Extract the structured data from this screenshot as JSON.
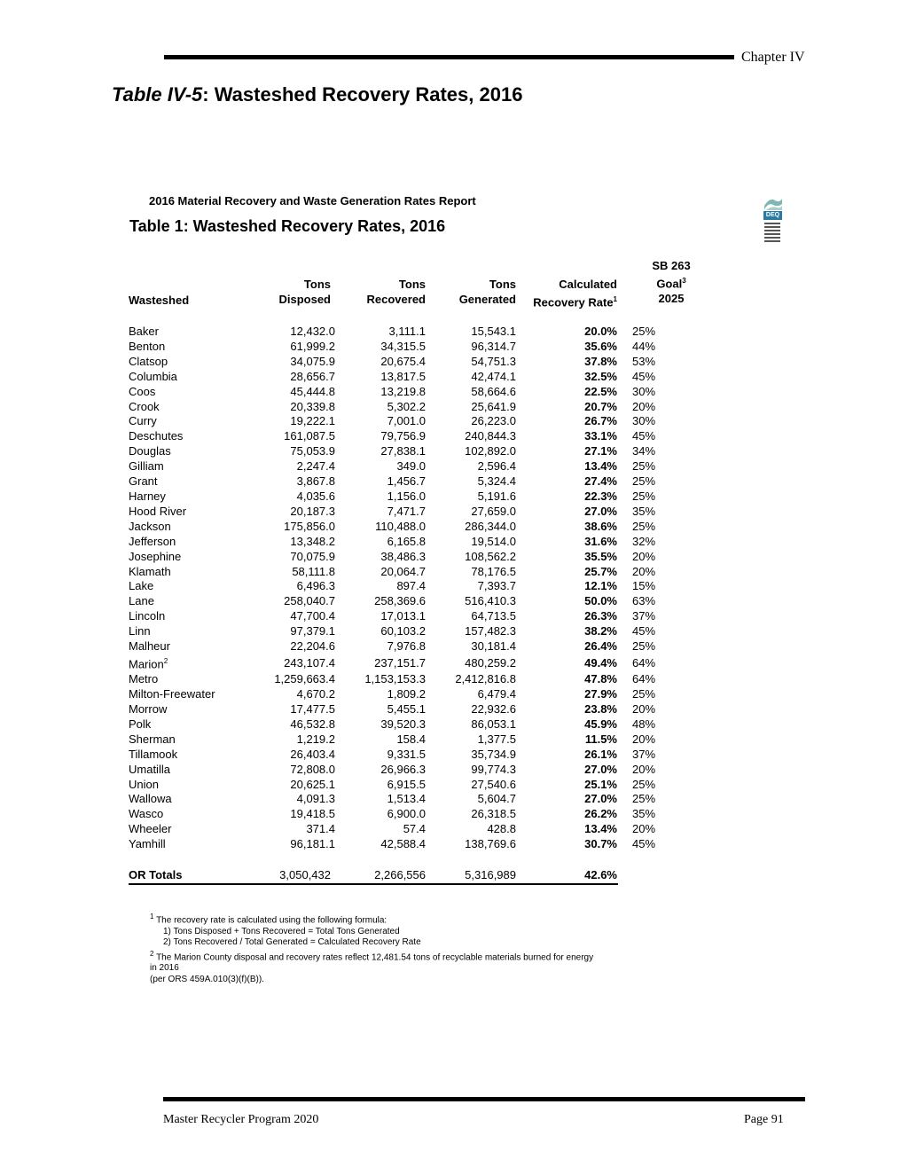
{
  "header": {
    "chapter": "Chapter IV",
    "title_italic": "Table IV-5",
    "title_rest": ": Wasteshed Recovery Rates, 2016"
  },
  "report": {
    "header": "2016 Material Recovery and Waste Generation Rates Report",
    "table_title": "Table 1: Wasteshed Recovery Rates, 2016",
    "logo_text": "DEQ"
  },
  "columns": {
    "wasteshed": "Wasteshed",
    "disposed_1": "Tons",
    "disposed_2": "Disposed",
    "recovered_1": "Tons",
    "recovered_2": "Recovered",
    "generated_1": "Tons",
    "generated_2": "Generated",
    "rate_1": "Calculated",
    "rate_2": "Recovery Rate",
    "rate_sup": "1",
    "goal_1": "SB 263",
    "goal_2": "Goal",
    "goal_sup": "3",
    "goal_3": "2025"
  },
  "rows": [
    {
      "name": "Baker",
      "disposed": "12,432.0",
      "recovered": "3,111.1",
      "generated": "15,543.1",
      "rate": "20.0%",
      "goal": "25%"
    },
    {
      "name": "Benton",
      "disposed": "61,999.2",
      "recovered": "34,315.5",
      "generated": "96,314.7",
      "rate": "35.6%",
      "goal": "44%"
    },
    {
      "name": "Clatsop",
      "disposed": "34,075.9",
      "recovered": "20,675.4",
      "generated": "54,751.3",
      "rate": "37.8%",
      "goal": "53%"
    },
    {
      "name": "Columbia",
      "disposed": "28,656.7",
      "recovered": "13,817.5",
      "generated": "42,474.1",
      "rate": "32.5%",
      "goal": "45%"
    },
    {
      "name": "Coos",
      "disposed": "45,444.8",
      "recovered": "13,219.8",
      "generated": "58,664.6",
      "rate": "22.5%",
      "goal": "30%"
    },
    {
      "name": "Crook",
      "disposed": "20,339.8",
      "recovered": "5,302.2",
      "generated": "25,641.9",
      "rate": "20.7%",
      "goal": "20%"
    },
    {
      "name": "Curry",
      "disposed": "19,222.1",
      "recovered": "7,001.0",
      "generated": "26,223.0",
      "rate": "26.7%",
      "goal": "30%"
    },
    {
      "name": "Deschutes",
      "disposed": "161,087.5",
      "recovered": "79,756.9",
      "generated": "240,844.3",
      "rate": "33.1%",
      "goal": "45%"
    },
    {
      "name": "Douglas",
      "disposed": "75,053.9",
      "recovered": "27,838.1",
      "generated": "102,892.0",
      "rate": "27.1%",
      "goal": "34%"
    },
    {
      "name": "Gilliam",
      "disposed": "2,247.4",
      "recovered": "349.0",
      "generated": "2,596.4",
      "rate": "13.4%",
      "goal": "25%"
    },
    {
      "name": "Grant",
      "disposed": "3,867.8",
      "recovered": "1,456.7",
      "generated": "5,324.4",
      "rate": "27.4%",
      "goal": "25%"
    },
    {
      "name": "Harney",
      "disposed": "4,035.6",
      "recovered": "1,156.0",
      "generated": "5,191.6",
      "rate": "22.3%",
      "goal": "25%"
    },
    {
      "name": "Hood River",
      "disposed": "20,187.3",
      "recovered": "7,471.7",
      "generated": "27,659.0",
      "rate": "27.0%",
      "goal": "35%"
    },
    {
      "name": "Jackson",
      "disposed": "175,856.0",
      "recovered": "110,488.0",
      "generated": "286,344.0",
      "rate": "38.6%",
      "goal": "25%"
    },
    {
      "name": "Jefferson",
      "disposed": "13,348.2",
      "recovered": "6,165.8",
      "generated": "19,514.0",
      "rate": "31.6%",
      "goal": "32%"
    },
    {
      "name": "Josephine",
      "disposed": "70,075.9",
      "recovered": "38,486.3",
      "generated": "108,562.2",
      "rate": "35.5%",
      "goal": "20%"
    },
    {
      "name": "Klamath",
      "disposed": "58,111.8",
      "recovered": "20,064.7",
      "generated": "78,176.5",
      "rate": "25.7%",
      "goal": "20%"
    },
    {
      "name": "Lake",
      "disposed": "6,496.3",
      "recovered": "897.4",
      "generated": "7,393.7",
      "rate": "12.1%",
      "goal": "15%"
    },
    {
      "name": "Lane",
      "disposed": "258,040.7",
      "recovered": "258,369.6",
      "generated": "516,410.3",
      "rate": "50.0%",
      "goal": "63%"
    },
    {
      "name": "Lincoln",
      "disposed": "47,700.4",
      "recovered": "17,013.1",
      "generated": "64,713.5",
      "rate": "26.3%",
      "goal": "37%"
    },
    {
      "name": "Linn",
      "disposed": "97,379.1",
      "recovered": "60,103.2",
      "generated": "157,482.3",
      "rate": "38.2%",
      "goal": "45%"
    },
    {
      "name": "Malheur",
      "disposed": "22,204.6",
      "recovered": "7,976.8",
      "generated": "30,181.4",
      "rate": "26.4%",
      "goal": "25%"
    },
    {
      "name": "Marion",
      "sup": "2",
      "disposed": "243,107.4",
      "recovered": "237,151.7",
      "generated": "480,259.2",
      "rate": "49.4%",
      "goal": "64%"
    },
    {
      "name": "Metro",
      "disposed": "1,259,663.4",
      "recovered": "1,153,153.3",
      "generated": "2,412,816.8",
      "rate": "47.8%",
      "goal": "64%"
    },
    {
      "name": "Milton-Freewater",
      "disposed": "4,670.2",
      "recovered": "1,809.2",
      "generated": "6,479.4",
      "rate": "27.9%",
      "goal": "25%"
    },
    {
      "name": "Morrow",
      "disposed": "17,477.5",
      "recovered": "5,455.1",
      "generated": "22,932.6",
      "rate": "23.8%",
      "goal": "20%"
    },
    {
      "name": "Polk",
      "disposed": "46,532.8",
      "recovered": "39,520.3",
      "generated": "86,053.1",
      "rate": "45.9%",
      "goal": "48%"
    },
    {
      "name": "Sherman",
      "disposed": "1,219.2",
      "recovered": "158.4",
      "generated": "1,377.5",
      "rate": "11.5%",
      "goal": "20%"
    },
    {
      "name": "Tillamook",
      "disposed": "26,403.4",
      "recovered": "9,331.5",
      "generated": "35,734.9",
      "rate": "26.1%",
      "goal": "37%"
    },
    {
      "name": "Umatilla",
      "disposed": "72,808.0",
      "recovered": "26,966.3",
      "generated": "99,774.3",
      "rate": "27.0%",
      "goal": "20%"
    },
    {
      "name": "Union",
      "disposed": "20,625.1",
      "recovered": "6,915.5",
      "generated": "27,540.6",
      "rate": "25.1%",
      "goal": "25%"
    },
    {
      "name": "Wallowa",
      "disposed": "4,091.3",
      "recovered": "1,513.4",
      "generated": "5,604.7",
      "rate": "27.0%",
      "goal": "25%"
    },
    {
      "name": "Wasco",
      "disposed": "19,418.5",
      "recovered": "6,900.0",
      "generated": "26,318.5",
      "rate": "26.2%",
      "goal": "35%"
    },
    {
      "name": "Wheeler",
      "disposed": "371.4",
      "recovered": "57.4",
      "generated": "428.8",
      "rate": "13.4%",
      "goal": "20%"
    },
    {
      "name": "Yamhill",
      "disposed": "96,181.1",
      "recovered": "42,588.4",
      "generated": "138,769.6",
      "rate": "30.7%",
      "goal": "45%"
    }
  ],
  "totals": {
    "label": "OR Totals",
    "disposed": "3,050,432",
    "recovered": "2,266,556",
    "generated": "5,316,989",
    "rate": "42.6%"
  },
  "footnotes": {
    "f1_sup": "1",
    "f1": "The recovery rate is calculated using the following formula:",
    "f1a": "1) Tons Disposed + Tons Recovered = Total Tons Generated",
    "f1b": "2) Tons Recovered / Total Generated = Calculated Recovery Rate",
    "f2_sup": "2",
    "f2": "The Marion County disposal and recovery rates reflect 12,481.54 tons of recyclable materials burned for energy",
    "f2b": "in 2016",
    "f2c": "(per ORS 459A.010(3)(f)(B))."
  },
  "footer": {
    "left": "Master Recycler Program  2020",
    "right": "Page 91"
  }
}
